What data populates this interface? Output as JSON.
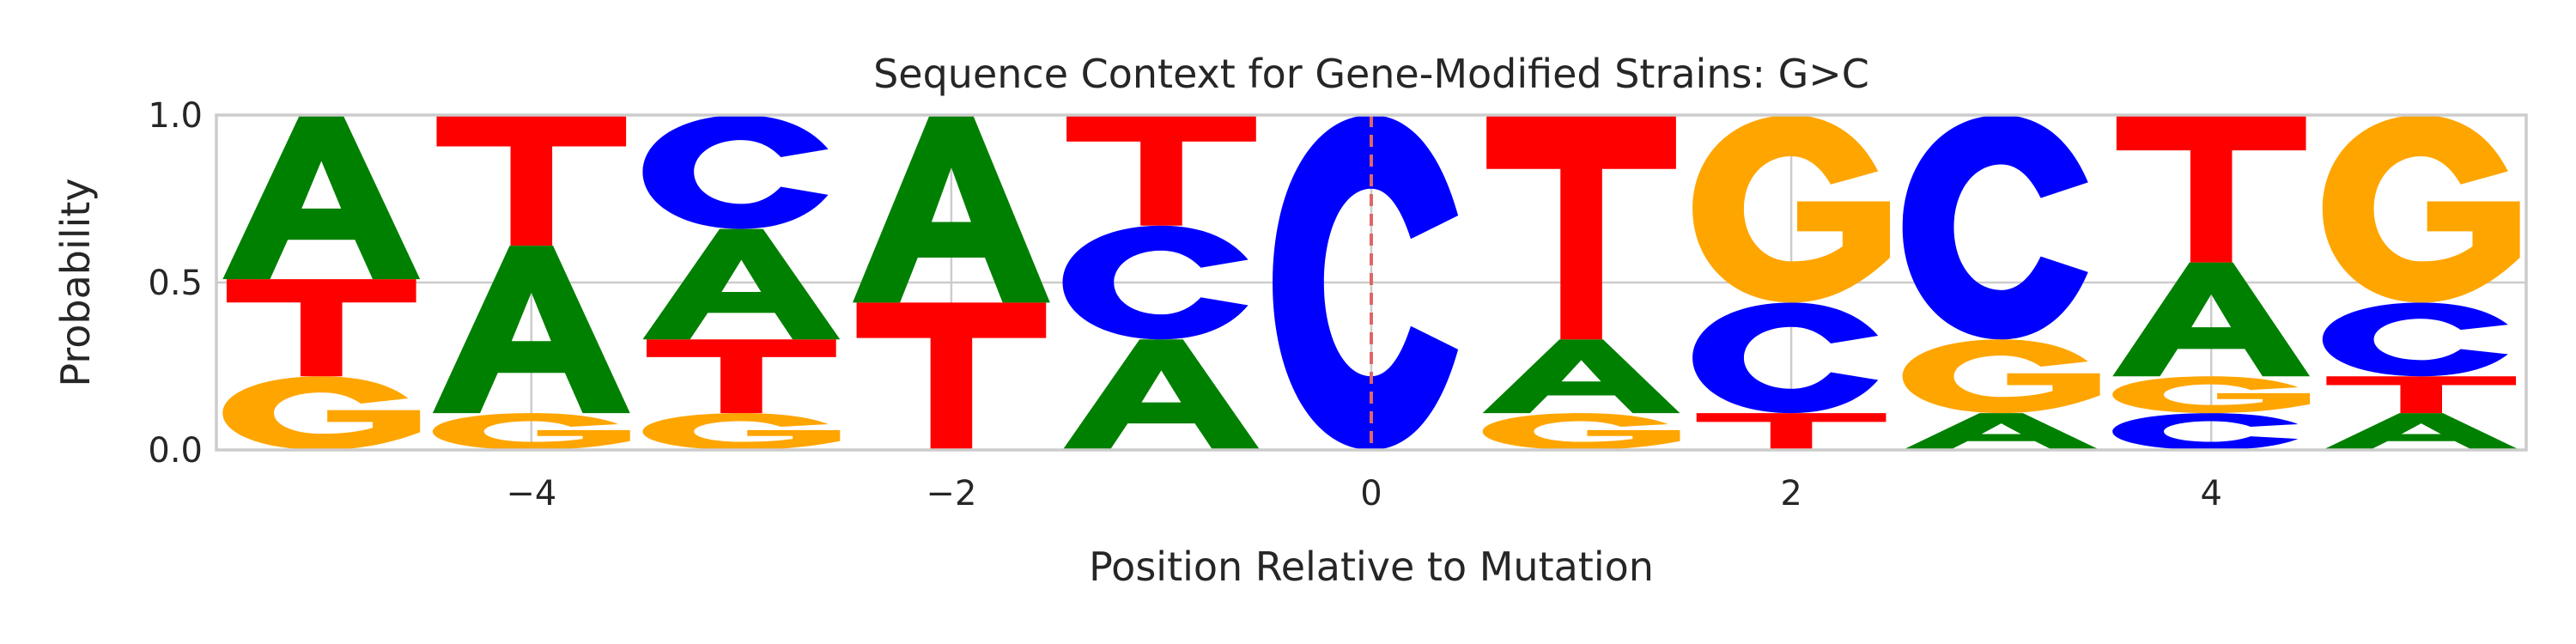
{
  "chart_data": {
    "type": "sequence-logo",
    "title": "Sequence Context for Gene-Modified Strains: G>C",
    "xlabel": "Position Relative to Mutation",
    "ylabel": "Probability",
    "xlim": [
      -5.5,
      5.5
    ],
    "ylim": [
      0,
      1
    ],
    "xticks": [
      -4,
      -2,
      0,
      2,
      4
    ],
    "xtick_labels": [
      "−4",
      "−2",
      "0",
      "2",
      "4"
    ],
    "yticks": [
      0,
      0.5,
      1
    ],
    "ytick_labels": [
      "0.0",
      "0.5",
      "1.0"
    ],
    "grid": true,
    "mutation_position": 0,
    "colors": {
      "A": "#008000",
      "C": "#0000ff",
      "G": "#ffa500",
      "T": "#ff0000",
      "mutation_line": "#e06666"
    },
    "positions": [
      -5,
      -4,
      -3,
      -2,
      -1,
      0,
      1,
      2,
      3,
      4,
      5
    ],
    "stacks": [
      [
        {
          "base": "G",
          "p": 0.22
        },
        {
          "base": "T",
          "p": 0.29
        },
        {
          "base": "A",
          "p": 0.49
        }
      ],
      [
        {
          "base": "G",
          "p": 0.11
        },
        {
          "base": "A",
          "p": 0.5
        },
        {
          "base": "T",
          "p": 0.39
        }
      ],
      [
        {
          "base": "G",
          "p": 0.11
        },
        {
          "base": "T",
          "p": 0.22
        },
        {
          "base": "A",
          "p": 0.33
        },
        {
          "base": "C",
          "p": 0.34
        }
      ],
      [
        {
          "base": "T",
          "p": 0.44
        },
        {
          "base": "A",
          "p": 0.56
        }
      ],
      [
        {
          "base": "A",
          "p": 0.33
        },
        {
          "base": "C",
          "p": 0.34
        },
        {
          "base": "T",
          "p": 0.33
        }
      ],
      [
        {
          "base": "C",
          "p": 1.0
        }
      ],
      [
        {
          "base": "G",
          "p": 0.11
        },
        {
          "base": "A",
          "p": 0.22
        },
        {
          "base": "T",
          "p": 0.67
        }
      ],
      [
        {
          "base": "T",
          "p": 0.11
        },
        {
          "base": "C",
          "p": 0.33
        },
        {
          "base": "G",
          "p": 0.56
        }
      ],
      [
        {
          "base": "A",
          "p": 0.11
        },
        {
          "base": "G",
          "p": 0.22
        },
        {
          "base": "C",
          "p": 0.67
        }
      ],
      [
        {
          "base": "C",
          "p": 0.11
        },
        {
          "base": "G",
          "p": 0.11
        },
        {
          "base": "A",
          "p": 0.34
        },
        {
          "base": "T",
          "p": 0.44
        }
      ],
      [
        {
          "base": "A",
          "p": 0.11
        },
        {
          "base": "T",
          "p": 0.11
        },
        {
          "base": "C",
          "p": 0.22
        },
        {
          "base": "G",
          "p": 0.56
        }
      ]
    ]
  }
}
